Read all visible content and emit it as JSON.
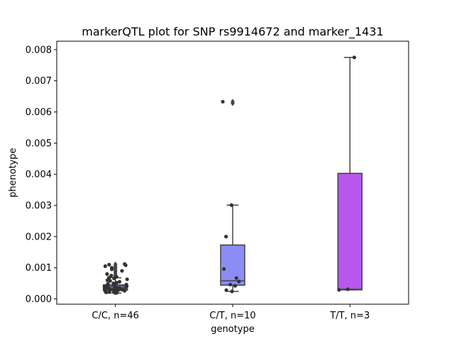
{
  "chart_data": {
    "type": "box",
    "title": "markerQTL plot for SNP rs9914672 and marker_1431",
    "xlabel": "genotype",
    "ylabel": "phenotype",
    "ylim": [
      -0.00017,
      0.00827
    ],
    "yticks": [
      0,
      0.001,
      0.002,
      0.003,
      0.004,
      0.005,
      0.006,
      0.007,
      0.008
    ],
    "ytick_labels": [
      "0.000",
      "0.001",
      "0.002",
      "0.003",
      "0.004",
      "0.005",
      "0.006",
      "0.007",
      "0.008"
    ],
    "grid": false,
    "categories": [
      "C/C, n=46",
      "C/T, n=10",
      "T/T, n=3"
    ],
    "boxes": [
      {
        "category": "C/C, n=46",
        "color": "#5a5d9e",
        "whisker_low": 0.00019,
        "q1": 0.00028,
        "median": 0.00033,
        "q3": 0.00045,
        "whisker_high": 0.00068,
        "outliers": [
          0.00072,
          0.00076,
          0.00081,
          0.00086,
          0.0009,
          0.00095,
          0.001,
          0.00105,
          0.00111
        ],
        "points": [
          0.00019,
          0.0002,
          0.00021,
          0.00022,
          0.00023,
          0.00024,
          0.00025,
          0.00026,
          0.00027,
          0.00028,
          0.00029,
          0.0003,
          0.0003,
          0.00031,
          0.00032,
          0.00033,
          0.00034,
          0.00035,
          0.00036,
          0.00037,
          0.00038,
          0.00039,
          0.0004,
          0.00041,
          0.00042,
          0.00044,
          0.00046,
          0.00048,
          0.0005,
          0.00052,
          0.00055,
          0.00058,
          0.0006,
          0.00063,
          0.00066,
          0.00068,
          0.00071,
          0.00075,
          0.0008,
          0.0009,
          0.00095,
          0.001,
          0.00105,
          0.00108,
          0.0011,
          0.00112
        ]
      },
      {
        "category": "C/T, n=10",
        "color": "#8c8cf5",
        "whisker_low": 0.00024,
        "q1": 0.00044,
        "median": 0.00058,
        "q3": 0.00173,
        "whisker_high": 0.00301,
        "outliers": [
          0.00633,
          0.00628
        ],
        "points": [
          0.00024,
          0.00028,
          0.00042,
          0.00046,
          0.00056,
          0.00067,
          0.00096,
          0.002,
          0.00301,
          0.00633
        ]
      },
      {
        "category": "T/T, n=3",
        "color": "#b857ee",
        "whisker_low": 0.00029,
        "q1": 0.00029,
        "median": 0.00031,
        "q3": 0.00403,
        "whisker_high": 0.00775,
        "outliers": [],
        "points": [
          0.00029,
          0.00031,
          0.00775
        ]
      }
    ]
  }
}
